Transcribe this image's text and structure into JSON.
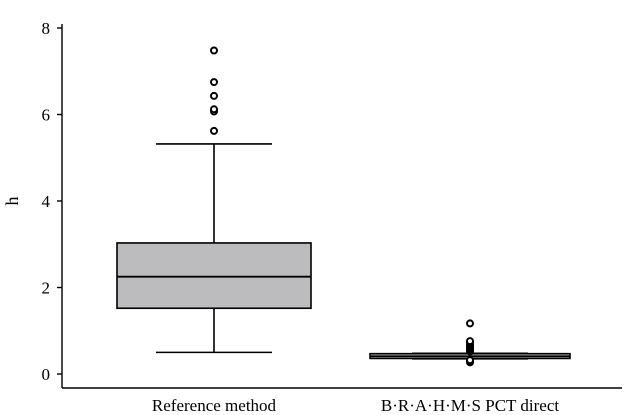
{
  "chart_data": {
    "type": "box",
    "ylabel": "h",
    "xlabel": "",
    "ylim": [
      0,
      8
    ],
    "yticks": [
      0,
      2,
      4,
      6,
      8
    ],
    "grid": false,
    "box_fill": "#bcbcbf",
    "categories": [
      "Reference method",
      "B·R·A·H·M·S PCT direct"
    ],
    "boxes": [
      {
        "category": "Reference method",
        "whisker_low": 0.5,
        "q1": 1.52,
        "median": 2.25,
        "q3": 3.03,
        "whisker_high": 5.32,
        "outliers": [
          5.62,
          6.07,
          6.12,
          6.43,
          6.75,
          7.48
        ]
      },
      {
        "category": "B·R·A·H·M·S PCT direct",
        "whisker_low": 0.35,
        "q1": 0.36,
        "median": 0.41,
        "q3": 0.47,
        "whisker_high": 0.48,
        "outliers": [
          0.27,
          0.3,
          0.32,
          0.52,
          0.55,
          0.58,
          0.61,
          0.64,
          0.68,
          0.72,
          0.76,
          1.17
        ]
      }
    ]
  }
}
